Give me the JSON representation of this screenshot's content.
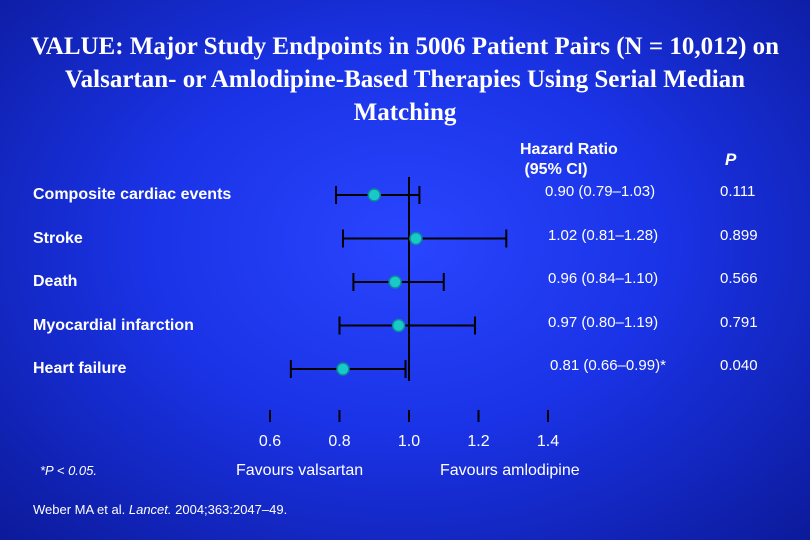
{
  "title": "VALUE: Major Study Endpoints in 5006 Patient Pairs (N = 10,012) on Valsartan- or Amlodipine-Based Therapies Using Serial Median Matching",
  "headers": {
    "hazard_ratio": "Hazard Ratio\n (95% CI)",
    "p": "P"
  },
  "favours_left": "Favours valsartan",
  "favours_right": "Favours amlodipine",
  "footnote": "*P < 0.05.",
  "citation": {
    "authors": "Weber MA et al. ",
    "journal": "Lancet.",
    "details": " 2004;363:2047–49."
  },
  "chart_data": {
    "type": "forest",
    "reference_line": 1.0,
    "xlim": [
      0.6,
      1.4
    ],
    "xticks": [
      "0.6",
      "0.8",
      "1.0",
      "1.2",
      "1.4"
    ],
    "endpoints": [
      {
        "label": "Composite cardiac events",
        "hr": 0.9,
        "lo": 0.79,
        "hi": 1.03,
        "ci_text": "0.90 (0.79–1.03)",
        "p": "0.111"
      },
      {
        "label": "Stroke",
        "hr": 1.02,
        "lo": 0.81,
        "hi": 1.28,
        "ci_text": "1.02 (0.81–1.28)",
        "p": "0.899"
      },
      {
        "label": "Death",
        "hr": 0.96,
        "lo": 0.84,
        "hi": 1.1,
        "ci_text": "0.96 (0.84–1.10)",
        "p": "0.566"
      },
      {
        "label": "Myocardial infarction",
        "hr": 0.97,
        "lo": 0.8,
        "hi": 1.19,
        "ci_text": "0.97 (0.80–1.19)",
        "p": "0.791"
      },
      {
        "label": "Heart failure",
        "hr": 0.81,
        "lo": 0.66,
        "hi": 0.99,
        "ci_text": "0.81 (0.66–0.99)*",
        "p": "0.040"
      }
    ],
    "colors": {
      "marker": "#19c8c8",
      "marker_edge": "#0a8a9a",
      "line": "#000000"
    }
  }
}
